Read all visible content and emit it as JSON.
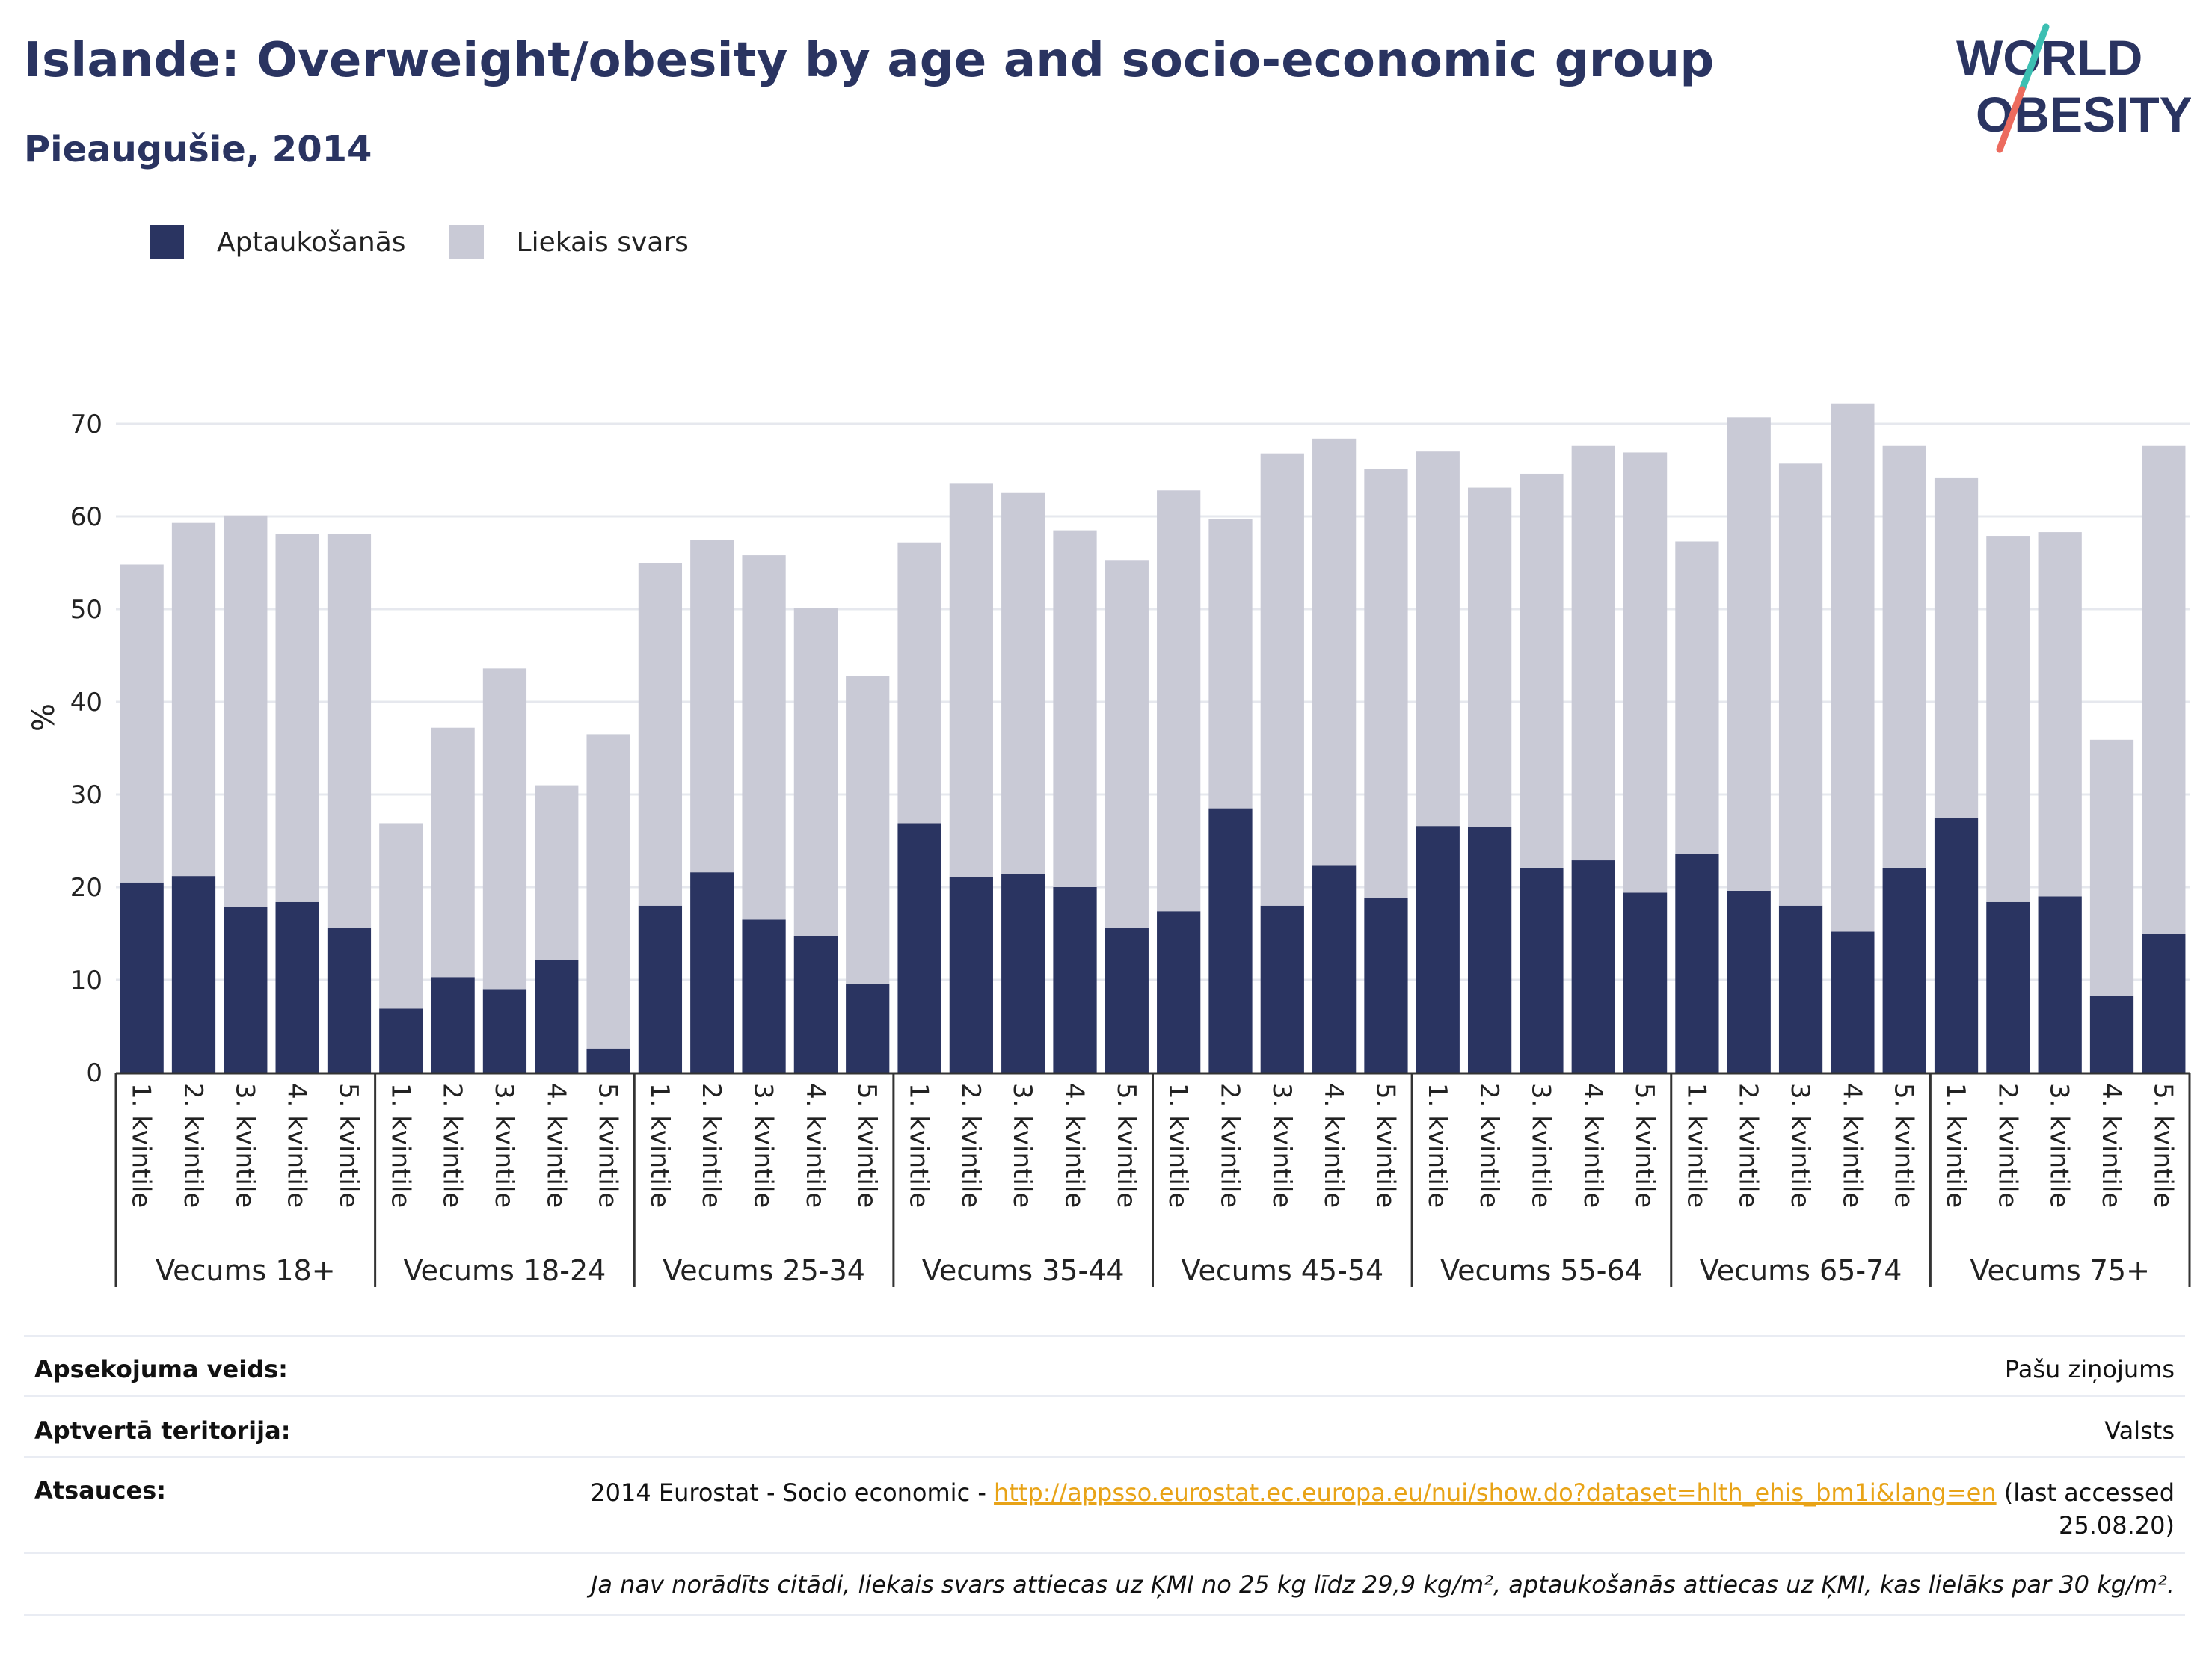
{
  "title": "Islande: Overweight/obesity by age and socio-economic group",
  "subtitle": "Pieaugušie, 2014",
  "logo": {
    "line1": "WORLD",
    "line2": "OBESITY"
  },
  "colors": {
    "obesity": "#2a3461",
    "overweight": "#c9cad6",
    "title": "#2a3461",
    "link": "#e8a317",
    "grid": "#e6e8ee",
    "logo_teal": "#3cbfb2",
    "logo_red": "#ec6b5e"
  },
  "legend": [
    {
      "label": "Aptaukošanās",
      "color": "#2a3461"
    },
    {
      "label": "Liekais svars",
      "color": "#c9cad6"
    }
  ],
  "chart_data": {
    "type": "bar",
    "stacked": true,
    "ylabel": "%",
    "ylim": [
      0,
      75
    ],
    "yticks": [
      0,
      10,
      20,
      30,
      40,
      50,
      60,
      70
    ],
    "grid": true,
    "legend_position": "top-left",
    "subcategories": [
      "1. kvintile",
      "2. kvintile",
      "3. kvintile",
      "4. kvintile",
      "5. kvintile"
    ],
    "groups": [
      "Vecums 18+",
      "Vecums 18-24",
      "Vecums 25-34",
      "Vecums 35-44",
      "Vecums 45-54",
      "Vecums 55-64",
      "Vecums 65-74",
      "Vecums 75+"
    ],
    "series": [
      {
        "name": "Aptaukošanās",
        "values": [
          20.5,
          21.2,
          17.9,
          18.4,
          15.6,
          6.9,
          10.3,
          9.0,
          12.1,
          2.6,
          18.0,
          21.6,
          16.5,
          14.7,
          9.6,
          26.9,
          21.1,
          21.4,
          20.0,
          15.6,
          17.4,
          28.5,
          18.0,
          22.3,
          18.8,
          26.6,
          26.5,
          22.1,
          22.9,
          19.4,
          23.6,
          19.6,
          18.0,
          15.2,
          22.1,
          27.5,
          18.4,
          19.0,
          8.3,
          15.0
        ]
      },
      {
        "name": "Liekais svars",
        "values": [
          34.3,
          38.1,
          42.2,
          39.7,
          42.5,
          20.0,
          26.9,
          34.6,
          18.9,
          33.9,
          37.0,
          35.9,
          39.3,
          35.4,
          33.2,
          30.3,
          42.5,
          41.2,
          38.5,
          39.7,
          45.4,
          31.2,
          48.8,
          46.1,
          46.3,
          40.4,
          36.6,
          42.5,
          44.7,
          47.5,
          33.7,
          51.1,
          47.7,
          57.0,
          45.5,
          36.7,
          39.5,
          39.3,
          27.6,
          52.6
        ]
      }
    ]
  },
  "info": {
    "survey_type_label": "Apsekojuma veids:",
    "survey_type_value": "Pašu ziņojums",
    "coverage_label": "Aptvertā teritorija:",
    "coverage_value": "Valsts",
    "references_label": "Atsauces:",
    "references_prefix": "2014 Eurostat - Socio economic - ",
    "references_link": "http://appsso.eurostat.ec.europa.eu/nui/show.do?dataset=hlth_ehis_bm1i&lang=en",
    "references_suffix": " (last accessed",
    "references_date": "25.08.20)",
    "note": "Ja nav norādīts citādi, liekais svars attiecas uz ĶMI no 25 kg līdz 29,9 kg/m², aptaukošanās attiecas uz ĶMI, kas lielāks par 30 kg/m²."
  }
}
